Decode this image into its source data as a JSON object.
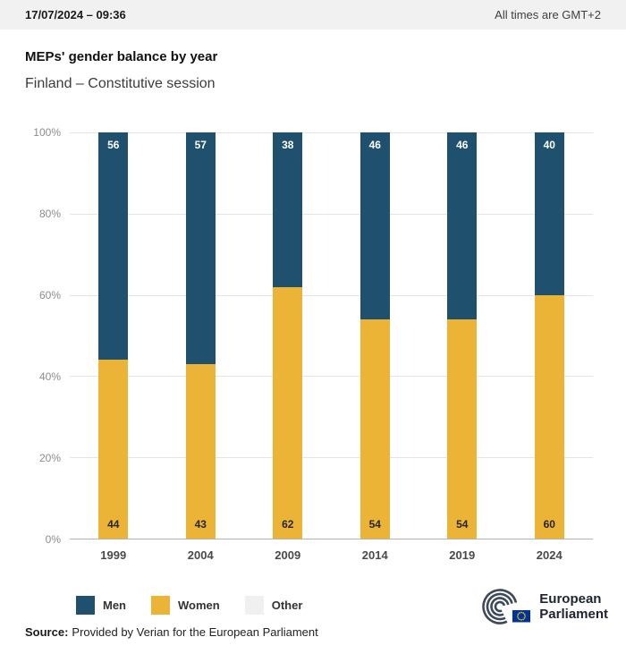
{
  "header": {
    "datetime": "17/07/2024 – 09:36",
    "timezone": "All times are GMT+2"
  },
  "chart_data": {
    "type": "bar",
    "stacked": true,
    "title": "MEPs' gender balance by year",
    "subtitle": "Finland – Constitutive session",
    "xlabel": "",
    "ylabel": "",
    "categories": [
      "1999",
      "2004",
      "2009",
      "2014",
      "2019",
      "2024"
    ],
    "series": [
      {
        "name": "Women",
        "color": "#ebb437",
        "label_color": "#262626",
        "label_pos": "bottom",
        "values": [
          44,
          43,
          62,
          54,
          54,
          60
        ]
      },
      {
        "name": "Men",
        "color": "#1f506e",
        "label_color": "#ffffff",
        "label_pos": "top",
        "values": [
          56,
          57,
          38,
          46,
          46,
          40
        ]
      },
      {
        "name": "Other",
        "color": "#f0f0f0",
        "label_color": "#262626",
        "label_pos": "top",
        "values": [
          0,
          0,
          0,
          0,
          0,
          0
        ]
      }
    ],
    "ylim": [
      0,
      100
    ],
    "yticks": [
      0,
      20,
      40,
      60,
      80,
      100
    ],
    "ytick_labels": [
      "0%",
      "20%",
      "40%",
      "60%",
      "80%",
      "100%"
    ],
    "grid": true,
    "legend_position": "bottom",
    "legend": [
      {
        "label": "Men",
        "color": "#1f506e"
      },
      {
        "label": "Women",
        "color": "#ebb437"
      },
      {
        "label": "Other",
        "color": "#f0f0f0"
      }
    ]
  },
  "footer": {
    "source_label": "Source:",
    "source_text": "Provided by Verian for the European Parliament",
    "logo_line1": "European",
    "logo_line2": "Parliament"
  }
}
